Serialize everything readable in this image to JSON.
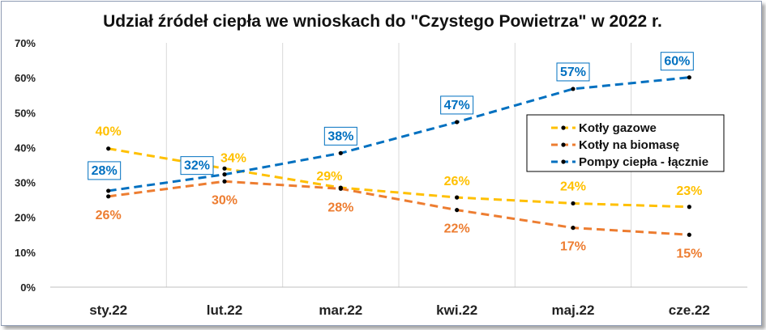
{
  "chart_data": {
    "type": "line",
    "title": "Udział źródeł ciepła we wnioskach do \"Czystego Powietrza\" w 2022 r.",
    "categories": [
      "sty.22",
      "lut.22",
      "mar.22",
      "kwi.22",
      "maj.22",
      "cze.22"
    ],
    "yticks": [
      "0%",
      "10%",
      "20%",
      "30%",
      "40%",
      "50%",
      "60%",
      "70%"
    ],
    "ylim": [
      0,
      70
    ],
    "grid": "vertical",
    "legend_position": "right",
    "series": [
      {
        "name": "Kotły gazowe",
        "color": "#FFC000",
        "values": [
          39.7,
          34.0,
          28.5,
          25.7,
          24.0,
          23.0
        ],
        "labels": [
          "40%",
          "34%",
          "29%",
          "26%",
          "24%",
          "23%"
        ]
      },
      {
        "name": "Kotły na biomasę",
        "color": "#ED7D31",
        "values": [
          26.0,
          30.3,
          28.2,
          22.1,
          17.0,
          15.0
        ],
        "labels": [
          "26%",
          "30%",
          "28%",
          "22%",
          "17%",
          "15%"
        ]
      },
      {
        "name": "Pompy ciepła - łącznie",
        "color": "#0070C0",
        "values": [
          27.6,
          32.3,
          38.4,
          47.3,
          56.8,
          60.1
        ],
        "labels": [
          "28%",
          "32%",
          "38%",
          "47%",
          "57%",
          "60%"
        ]
      }
    ]
  }
}
